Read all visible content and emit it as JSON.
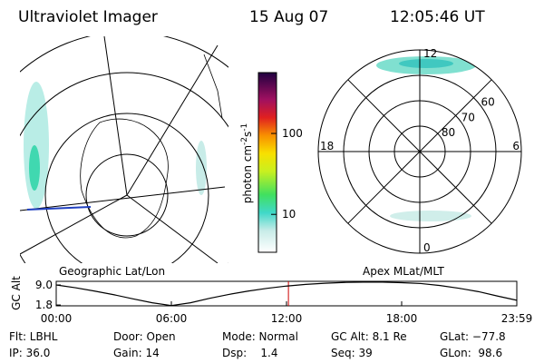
{
  "header": {
    "title": "Ultraviolet Imager",
    "date": "15 Aug 07",
    "time": "12:05:46 UT"
  },
  "colorbar": {
    "label_parts": [
      "photon cm",
      "-2",
      "s",
      "-1"
    ],
    "lim": [
      3.4,
      565
    ],
    "ticks": [
      10,
      100
    ],
    "log": true
  },
  "geo_panel": {
    "label": "Geographic Lat/Lon"
  },
  "polar_panel": {
    "label": "Apex MLat/MLT",
    "mlt_labels": [
      "12",
      "18",
      "6",
      "0"
    ],
    "lat_labels": [
      80,
      70,
      60
    ],
    "rlim": [
      90,
      50
    ]
  },
  "chart_data": {
    "type": "line",
    "ylabel": "GC Alt",
    "x": [
      0,
      1,
      2,
      3,
      4,
      5,
      6,
      7,
      8,
      9,
      10,
      11,
      12,
      13,
      14,
      15,
      16,
      17,
      18,
      19,
      20,
      21,
      22,
      23,
      24
    ],
    "series": [
      {
        "name": "GC Alt",
        "color": "#000000",
        "values": [
          9.0,
          8.0,
          6.8,
          5.5,
          4.0,
          2.6,
          1.6,
          2.6,
          4.2,
          5.6,
          6.8,
          7.8,
          8.6,
          9.2,
          9.6,
          9.9,
          10.0,
          10.0,
          9.8,
          9.5,
          8.8,
          7.8,
          6.6,
          5.0,
          3.5
        ]
      }
    ],
    "xlim": [
      0,
      24
    ],
    "ylim": [
      1.5,
      10.3
    ],
    "xticks": [
      {
        "value": 0,
        "label": "00:00"
      },
      {
        "value": 6,
        "label": "06:00"
      },
      {
        "value": 12,
        "label": "12:00"
      },
      {
        "value": 18,
        "label": "18:00"
      },
      {
        "value": 24,
        "label": "23:59"
      }
    ],
    "yticks": [
      1.8,
      {
        "value": 9.0,
        "label": "9.0"
      }
    ],
    "time_marker": 12.1,
    "marker_color": "#cc0000"
  },
  "info": {
    "rows": [
      [
        "Flt: LBHL",
        "Door: Open",
        "Mode: Normal",
        "GC Alt: 8.1 Re",
        "GLat: −77.8"
      ],
      [
        "IP: 36.0",
        "Gain: 14",
        "Dsp:    1.4",
        "Seq: 39",
        "GLon:  98.6"
      ]
    ]
  }
}
